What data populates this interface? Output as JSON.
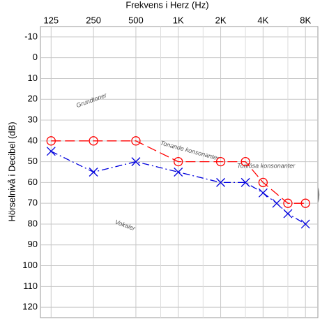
{
  "chart_data": {
    "type": "line",
    "title": "Frekvens i Herz (Hz)",
    "y_label": "Hörselnivå i Decibel (dB)",
    "x_scale": "log",
    "y_reversed": true,
    "grid": true,
    "xlim": [
      105,
      9800
    ],
    "ylim": [
      -15,
      125
    ],
    "xticks": [
      125,
      250,
      500,
      {
        "value": 1000,
        "label": "1K"
      },
      {
        "value": 2000,
        "label": "2K"
      },
      {
        "value": 4000,
        "label": "4K"
      },
      {
        "value": 8000,
        "label": "8K"
      }
    ],
    "xminorticks": [
      750,
      1500,
      3000,
      6000
    ],
    "yticks": [
      -10,
      0,
      10,
      20,
      30,
      40,
      50,
      60,
      70,
      80,
      90,
      100,
      110,
      120
    ],
    "annotations": [
      "Grundtoner",
      "Tonande konsonanter",
      "Tonlösa konsonanter",
      "Vokaler"
    ],
    "series": [
      {
        "color": "#ff0000",
        "marker": "circle",
        "dash": "dashed",
        "x": [
          125,
          250,
          500,
          1000,
          2000,
          3000,
          4000,
          6000,
          8000
        ],
        "values": [
          40,
          40,
          40,
          50,
          50,
          50,
          60,
          70,
          70
        ]
      },
      {
        "color": "#0000dd",
        "marker": "x",
        "dash": "dashdot",
        "x": [
          125,
          250,
          500,
          1000,
          2000,
          3000,
          4000,
          5000,
          6000,
          8000
        ],
        "values": [
          45,
          55,
          50,
          55,
          60,
          60,
          65,
          70,
          75,
          80
        ]
      }
    ]
  }
}
